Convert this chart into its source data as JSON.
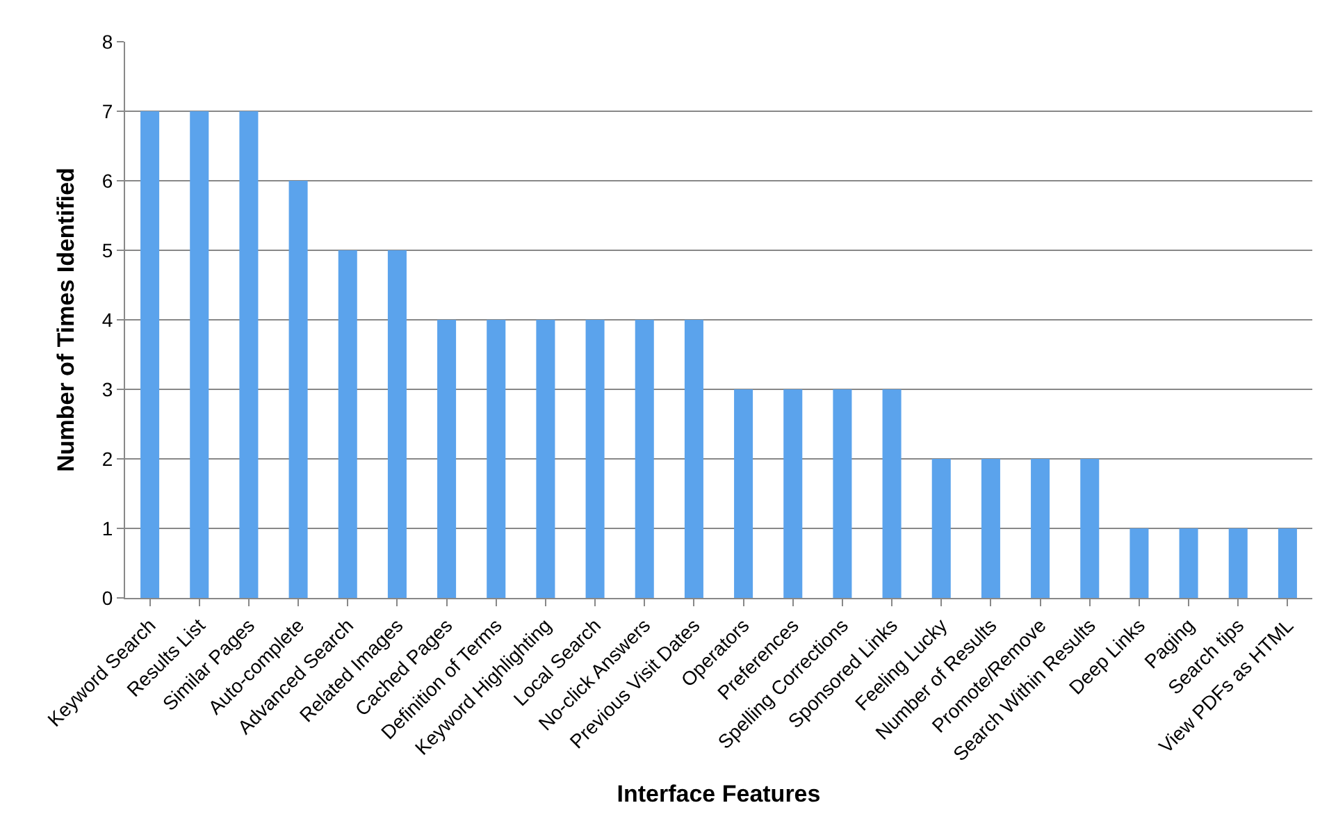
{
  "chart_data": {
    "type": "bar",
    "xlabel": "Interface Features",
    "ylabel": "Number of Times Identified",
    "categories": [
      "Keyword Search",
      "Results List",
      "Similar Pages",
      "Auto-complete",
      "Advanced Search",
      "Related Images",
      "Cached Pages",
      "Definition of Terms",
      "Keyword Highlighting",
      "Local Search",
      "No-click Answers",
      "Previous Visit Dates",
      "Operators",
      "Preferences",
      "Spelling Corrections",
      "Sponsored Links",
      "Feeling Lucky",
      "Number of Results",
      "Promote/Remove",
      "Search Within Results",
      "Deep Links",
      "Paging",
      "Search tips",
      "View PDFs as HTML"
    ],
    "values": [
      7,
      7,
      7,
      6,
      5,
      5,
      4,
      4,
      4,
      4,
      4,
      4,
      3,
      3,
      3,
      3,
      2,
      2,
      2,
      2,
      1,
      1,
      1,
      1
    ],
    "color": "#5ba3ec",
    "ylim": [
      0,
      8
    ],
    "yticks": [
      0,
      1,
      2,
      3,
      4,
      5,
      6,
      7,
      8
    ],
    "grid": "y",
    "legend": false
  }
}
